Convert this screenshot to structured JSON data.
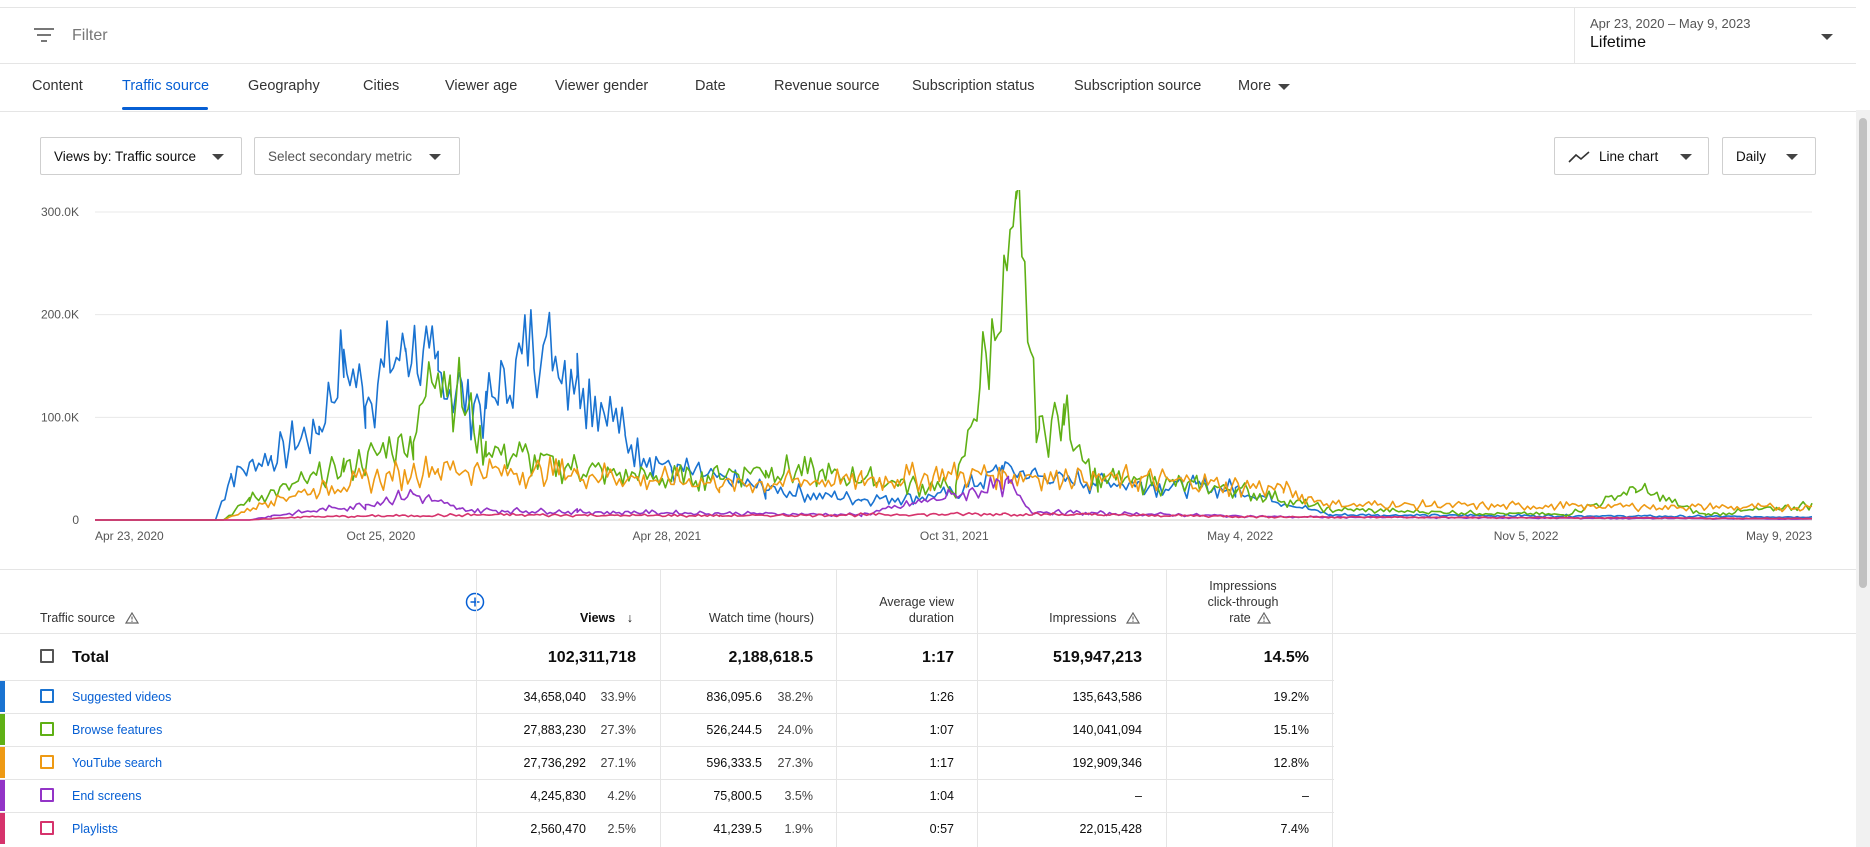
{
  "filter": {
    "placeholder": "Filter",
    "icon": "filter-icon"
  },
  "date": {
    "range": "Apr 23, 2020 – May 9, 2023",
    "label": "Lifetime"
  },
  "tabs": [
    "Content",
    "Traffic source",
    "Geography",
    "Cities",
    "Viewer age",
    "Viewer gender",
    "Date",
    "Revenue source",
    "Subscription status",
    "Subscription source",
    "More"
  ],
  "active_tab": "Traffic source",
  "controls": {
    "primary_metric": "Views by: Traffic source",
    "secondary_metric": "Select secondary metric",
    "chart_type": "Line chart",
    "granularity": "Daily"
  },
  "colors": {
    "accent": "#065fd4",
    "suggested": "#1a73d1",
    "browse": "#5fb015",
    "search": "#ee9a14",
    "end_screens": "#9334c7",
    "playlists": "#d6336c"
  },
  "chart_data": {
    "type": "line",
    "x_ticks": [
      "Apr 23, 2020",
      "Oct 25, 2020",
      "Apr 28, 2021",
      "Oct 31, 2021",
      "May 4, 2022",
      "Nov 5, 2022",
      "May 9, 2023"
    ],
    "y_ticks": [
      "0",
      "100.0K",
      "200.0K",
      "300.0K"
    ],
    "ylim": [
      0,
      300000
    ],
    "x_range": [
      "2020-04-23",
      "2023-05-09"
    ],
    "grid": true,
    "series": [
      {
        "name": "Suggested videos",
        "color": "#1a73d1",
        "points": [
          [
            "2020-04-23",
            0
          ],
          [
            "2020-07-10",
            0
          ],
          [
            "2020-07-20",
            45000
          ],
          [
            "2020-08-15",
            60000
          ],
          [
            "2020-09-15",
            90000
          ],
          [
            "2020-10-01",
            150000
          ],
          [
            "2020-10-15",
            120000
          ],
          [
            "2020-11-10",
            170000
          ],
          [
            "2020-12-01",
            140000
          ],
          [
            "2021-01-01",
            110000
          ],
          [
            "2021-02-01",
            170000
          ],
          [
            "2021-03-01",
            150000
          ],
          [
            "2021-04-01",
            80000
          ],
          [
            "2021-05-01",
            50000
          ],
          [
            "2021-07-01",
            30000
          ],
          [
            "2021-09-01",
            20000
          ],
          [
            "2021-11-01",
            25000
          ],
          [
            "2021-12-01",
            50000
          ],
          [
            "2022-01-01",
            40000
          ],
          [
            "2022-03-01",
            35000
          ],
          [
            "2022-05-01",
            30000
          ],
          [
            "2022-07-01",
            5000
          ],
          [
            "2023-05-09",
            3000
          ]
        ]
      },
      {
        "name": "Browse features",
        "color": "#5fb015",
        "points": [
          [
            "2020-04-23",
            0
          ],
          [
            "2020-07-15",
            0
          ],
          [
            "2020-08-01",
            20000
          ],
          [
            "2020-10-01",
            50000
          ],
          [
            "2020-11-15",
            80000
          ],
          [
            "2020-12-01",
            160000
          ],
          [
            "2021-01-01",
            70000
          ],
          [
            "2021-03-01",
            50000
          ],
          [
            "2021-05-01",
            40000
          ],
          [
            "2021-07-01",
            50000
          ],
          [
            "2021-09-01",
            40000
          ],
          [
            "2021-11-01",
            30000
          ],
          [
            "2021-12-10",
            285000
          ],
          [
            "2021-12-25",
            90000
          ],
          [
            "2022-01-10",
            100000
          ],
          [
            "2022-02-01",
            40000
          ],
          [
            "2022-05-01",
            30000
          ],
          [
            "2022-07-01",
            10000
          ],
          [
            "2022-12-01",
            5000
          ],
          [
            "2023-01-15",
            30000
          ],
          [
            "2023-03-01",
            5000
          ],
          [
            "2023-05-09",
            15000
          ]
        ]
      },
      {
        "name": "YouTube search",
        "color": "#ee9a14",
        "points": [
          [
            "2020-04-23",
            0
          ],
          [
            "2020-07-15",
            0
          ],
          [
            "2020-08-15",
            20000
          ],
          [
            "2020-10-01",
            35000
          ],
          [
            "2020-12-01",
            50000
          ],
          [
            "2021-03-01",
            45000
          ],
          [
            "2021-06-01",
            35000
          ],
          [
            "2021-09-01",
            40000
          ],
          [
            "2021-12-01",
            45000
          ],
          [
            "2022-03-01",
            40000
          ],
          [
            "2022-06-01",
            30000
          ],
          [
            "2022-07-01",
            15000
          ],
          [
            "2023-05-09",
            12000
          ]
        ]
      },
      {
        "name": "End screens",
        "color": "#9334c7",
        "points": [
          [
            "2020-04-23",
            0
          ],
          [
            "2020-08-01",
            0
          ],
          [
            "2020-08-15",
            4000
          ],
          [
            "2020-10-15",
            15000
          ],
          [
            "2020-11-15",
            25000
          ],
          [
            "2020-12-15",
            10000
          ],
          [
            "2021-03-01",
            8000
          ],
          [
            "2021-09-01",
            5000
          ],
          [
            "2021-12-05",
            35000
          ],
          [
            "2021-12-20",
            8000
          ],
          [
            "2022-06-01",
            3000
          ],
          [
            "2023-05-09",
            1000
          ]
        ]
      },
      {
        "name": "Playlists",
        "color": "#d6336c",
        "points": [
          [
            "2020-04-23",
            0
          ],
          [
            "2020-08-01",
            0
          ],
          [
            "2020-09-01",
            3000
          ],
          [
            "2021-01-01",
            5000
          ],
          [
            "2021-06-01",
            4000
          ],
          [
            "2021-12-01",
            6000
          ],
          [
            "2022-06-01",
            3000
          ],
          [
            "2023-05-09",
            1500
          ]
        ]
      }
    ]
  },
  "table": {
    "headers": {
      "source": "Traffic source",
      "views": "Views",
      "watch_time": "Watch time (hours)",
      "avg_view_1": "Average view",
      "avg_view_2": "duration",
      "impressions": "Impressions",
      "ctr_1": "Impressions",
      "ctr_2": "click-through",
      "ctr_3": "rate"
    },
    "total": {
      "label": "Total",
      "views": "102,311,718",
      "watch": "2,188,618.5",
      "avd": "1:17",
      "impressions": "519,947,213",
      "ctr": "14.5%"
    },
    "rows": [
      {
        "name": "Suggested videos",
        "views": "34,658,040",
        "views_pct": "33.9%",
        "watch": "836,095.6",
        "watch_pct": "38.2%",
        "avd": "1:26",
        "impressions": "135,643,586",
        "ctr": "19.2%",
        "color": "#1a73d1"
      },
      {
        "name": "Browse features",
        "views": "27,883,230",
        "views_pct": "27.3%",
        "watch": "526,244.5",
        "watch_pct": "24.0%",
        "avd": "1:07",
        "impressions": "140,041,094",
        "ctr": "15.1%",
        "color": "#5fb015"
      },
      {
        "name": "YouTube search",
        "views": "27,736,292",
        "views_pct": "27.1%",
        "watch": "596,333.5",
        "watch_pct": "27.3%",
        "avd": "1:17",
        "impressions": "192,909,346",
        "ctr": "12.8%",
        "color": "#ee9a14"
      },
      {
        "name": "End screens",
        "views": "4,245,830",
        "views_pct": "4.2%",
        "watch": "75,800.5",
        "watch_pct": "3.5%",
        "avd": "1:04",
        "impressions": "–",
        "ctr": "–",
        "color": "#9334c7"
      },
      {
        "name": "Playlists",
        "views": "2,560,470",
        "views_pct": "2.5%",
        "watch": "41,239.5",
        "watch_pct": "1.9%",
        "avd": "0:57",
        "impressions": "22,015,428",
        "ctr": "7.4%",
        "color": "#d6336c"
      }
    ]
  }
}
